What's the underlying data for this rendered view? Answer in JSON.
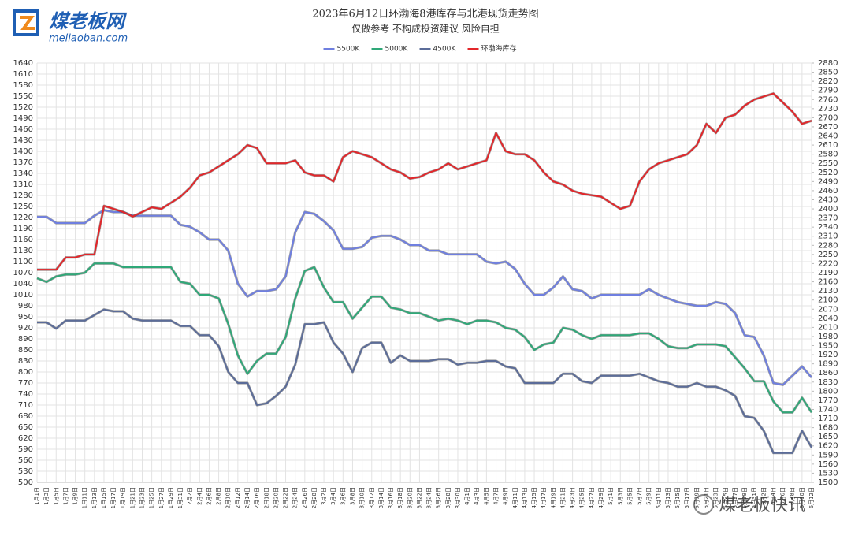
{
  "logo": {
    "name": "煤老板网",
    "url": "meilaoban.com"
  },
  "footer": {
    "brand": "煤老板快讯"
  },
  "chart_data": {
    "type": "line",
    "title": "2023年6月12日环渤海8港库存与北港现货走势图",
    "subtitle": "仅做参考 不构成投资建议 风险自担",
    "categories": [
      "1月1日",
      "1月3日",
      "1月5日",
      "1月7日",
      "1月9日",
      "1月11日",
      "1月13日",
      "1月15日",
      "1月17日",
      "1月19日",
      "1月21日",
      "1月23日",
      "1月25日",
      "1月27日",
      "1月29日",
      "1月31日",
      "2月2日",
      "2月4日",
      "2月6日",
      "2月8日",
      "2月10日",
      "2月12日",
      "2月14日",
      "2月16日",
      "2月18日",
      "2月20日",
      "2月22日",
      "2月24日",
      "2月26日",
      "2月28日",
      "3月2日",
      "3月4日",
      "3月6日",
      "3月8日",
      "3月10日",
      "3月12日",
      "3月14日",
      "3月16日",
      "3月18日",
      "3月20日",
      "3月22日",
      "3月24日",
      "3月26日",
      "3月28日",
      "3月30日",
      "4月1日",
      "4月3日",
      "4月5日",
      "4月7日",
      "4月9日",
      "4月11日",
      "4月13日",
      "4月15日",
      "4月17日",
      "4月19日",
      "4月21日",
      "4月23日",
      "4月25日",
      "4月27日",
      "4月29日",
      "5月1日",
      "5月3日",
      "5月5日",
      "5月7日",
      "5月9日",
      "5月11日",
      "5月13日",
      "5月15日",
      "5月17日",
      "5月19日",
      "5月21日",
      "5月23日",
      "5月25日",
      "5月27日",
      "5月29日",
      "5月31日",
      "6月2日",
      "6月4日",
      "6月6日",
      "6月8日",
      "6月10日",
      "6月12日"
    ],
    "series": [
      {
        "name": "5500K",
        "color": "#6f7fe0",
        "values": [
          1222,
          1222,
          1205,
          1205,
          1205,
          1205,
          1225,
          1240,
          1235,
          1235,
          1225,
          1225,
          1225,
          1225,
          1225,
          1200,
          1195,
          1180,
          1160,
          1160,
          1130,
          1040,
          1005,
          1020,
          1020,
          1025,
          1060,
          1180,
          1235,
          1230,
          1210,
          1185,
          1135,
          1135,
          1140,
          1165,
          1170,
          1170,
          1160,
          1145,
          1145,
          1130,
          1130,
          1120,
          1120,
          1120,
          1120,
          1100,
          1095,
          1100,
          1080,
          1040,
          1010,
          1010,
          1030,
          1060,
          1025,
          1020,
          1000,
          1010,
          1010,
          1010,
          1010,
          1010,
          1025,
          1010,
          1000,
          990,
          985,
          980,
          980,
          990,
          985,
          960,
          900,
          895,
          845,
          770,
          765,
          790,
          815,
          785
        ]
      },
      {
        "name": "5000K",
        "color": "#2fa878",
        "values": [
          1055,
          1045,
          1060,
          1065,
          1065,
          1070,
          1095,
          1095,
          1095,
          1085,
          1085,
          1085,
          1085,
          1085,
          1085,
          1045,
          1040,
          1010,
          1010,
          1000,
          930,
          845,
          795,
          830,
          850,
          850,
          895,
          1000,
          1075,
          1085,
          1030,
          990,
          990,
          945,
          975,
          1005,
          1005,
          975,
          970,
          960,
          960,
          950,
          940,
          945,
          940,
          930,
          940,
          940,
          935,
          920,
          915,
          895,
          860,
          875,
          880,
          920,
          915,
          900,
          890,
          900,
          900,
          900,
          900,
          905,
          905,
          890,
          870,
          865,
          865,
          875,
          875,
          875,
          870,
          840,
          810,
          775,
          775,
          720,
          690,
          690,
          730,
          690
        ]
      },
      {
        "name": "4500K",
        "color": "#5b6c99",
        "values": [
          935,
          935,
          918,
          940,
          940,
          940,
          955,
          970,
          965,
          965,
          945,
          940,
          940,
          940,
          940,
          925,
          925,
          900,
          900,
          870,
          800,
          770,
          770,
          710,
          715,
          735,
          760,
          820,
          930,
          930,
          935,
          880,
          850,
          800,
          865,
          880,
          880,
          825,
          845,
          830,
          830,
          830,
          835,
          835,
          820,
          825,
          825,
          830,
          830,
          815,
          810,
          770,
          770,
          770,
          770,
          795,
          795,
          775,
          770,
          790,
          790,
          790,
          790,
          795,
          785,
          775,
          770,
          760,
          760,
          770,
          760,
          760,
          750,
          735,
          680,
          675,
          640,
          580,
          580,
          580,
          640,
          595
        ]
      },
      {
        "name": "环渤海库存",
        "color": "#e3262a",
        "axis": "y2",
        "values": [
          2200,
          2200,
          2200,
          2240,
          2240,
          2250,
          2250,
          2410,
          2400,
          2390,
          2375,
          2390,
          2405,
          2400,
          2420,
          2440,
          2470,
          2510,
          2520,
          2540,
          2560,
          2580,
          2610,
          2600,
          2550,
          2550,
          2550,
          2560,
          2520,
          2510,
          2510,
          2490,
          2570,
          2590,
          2580,
          2570,
          2550,
          2530,
          2520,
          2500,
          2505,
          2520,
          2530,
          2550,
          2530,
          2540,
          2550,
          2560,
          2650,
          2590,
          2580,
          2580,
          2560,
          2520,
          2490,
          2480,
          2460,
          2450,
          2445,
          2440,
          2420,
          2400,
          2410,
          2490,
          2530,
          2550,
          2560,
          2570,
          2580,
          2610,
          2680,
          2650,
          2700,
          2710,
          2740,
          2760,
          2770,
          2780,
          2750,
          2720,
          2680,
          2690
        ]
      }
    ],
    "ylim": [
      500,
      1640
    ],
    "yticks": [
      500,
      530,
      560,
      590,
      620,
      650,
      680,
      710,
      740,
      770,
      800,
      830,
      860,
      890,
      920,
      950,
      980,
      1010,
      1040,
      1070,
      1100,
      1130,
      1160,
      1190,
      1220,
      1250,
      1280,
      1310,
      1340,
      1370,
      1400,
      1430,
      1460,
      1490,
      1520,
      1550,
      1580,
      1610,
      1640
    ],
    "y2lim": [
      1500,
      2880
    ],
    "y2ticks": [
      1500,
      1530,
      1560,
      1590,
      1620,
      1650,
      1680,
      1710,
      1740,
      1770,
      1800,
      1830,
      1860,
      1890,
      1920,
      1950,
      1980,
      2010,
      2040,
      2070,
      2100,
      2130,
      2160,
      2190,
      2220,
      2250,
      2280,
      2310,
      2340,
      2370,
      2400,
      2430,
      2460,
      2490,
      2520,
      2550,
      2580,
      2610,
      2640,
      2670,
      2700,
      2730,
      2760,
      2790,
      2820,
      2850,
      2880
    ],
    "grid": true,
    "legend": "top"
  }
}
